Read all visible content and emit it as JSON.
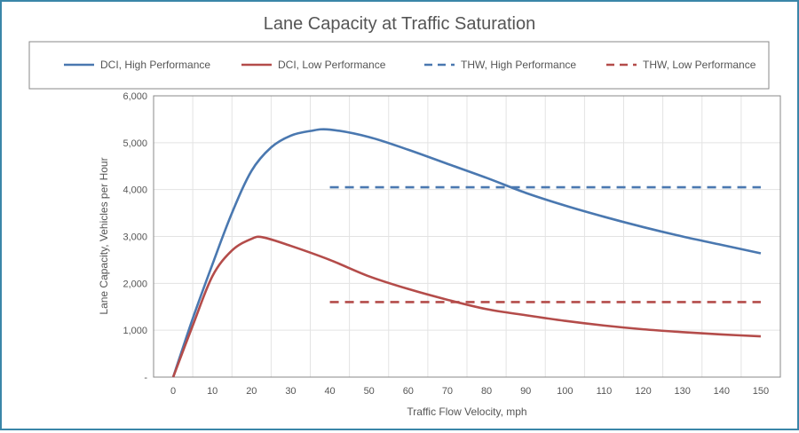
{
  "chart_data": {
    "type": "line",
    "title": "Lane Capacity at Traffic Saturation",
    "xlabel": "Traffic Flow Velocity, mph",
    "ylabel": "Lane Capacity, Vehicles per Hour",
    "xlim": [
      -5,
      155
    ],
    "ylim": [
      0,
      6000
    ],
    "x_ticks": [
      0,
      10,
      20,
      30,
      40,
      50,
      60,
      70,
      80,
      90,
      100,
      110,
      120,
      130,
      140,
      150
    ],
    "x_tick_labels": [
      "0",
      "10",
      "20",
      "30",
      "40",
      "50",
      "60",
      "70",
      "80",
      "90",
      "100",
      "110",
      "120",
      "130",
      "140",
      "150"
    ],
    "y_ticks": [
      0,
      1000,
      2000,
      3000,
      4000,
      5000,
      6000
    ],
    "y_tick_labels": [
      "-",
      "1,000",
      "2,000",
      "3,000",
      "4,000",
      "5,000",
      "6,000"
    ],
    "grid": true,
    "legend_placement": "top",
    "series": [
      {
        "name": "DCI, High Performance",
        "color": "#4a78b0",
        "dash": false,
        "x": [
          0,
          5,
          10,
          15,
          20,
          25,
          30,
          35,
          40,
          50,
          60,
          70,
          80,
          90,
          100,
          110,
          120,
          130,
          140,
          150
        ],
        "y": [
          0,
          1250,
          2400,
          3500,
          4400,
          4900,
          5150,
          5250,
          5280,
          5120,
          4850,
          4550,
          4250,
          3930,
          3660,
          3420,
          3200,
          3000,
          2820,
          2640
        ]
      },
      {
        "name": "DCI, Low Performance",
        "color": "#b44c4a",
        "dash": false,
        "x": [
          0,
          5,
          10,
          15,
          20,
          23,
          30,
          40,
          50,
          60,
          70,
          80,
          90,
          100,
          110,
          120,
          130,
          140,
          150
        ],
        "y": [
          0,
          1100,
          2150,
          2700,
          2950,
          2980,
          2800,
          2500,
          2150,
          1880,
          1650,
          1450,
          1320,
          1200,
          1100,
          1020,
          960,
          910,
          870
        ]
      },
      {
        "name": "THW, High Performance",
        "color": "#4a78b0",
        "dash": true,
        "x": [
          40,
          150
        ],
        "y": [
          4050,
          4050
        ]
      },
      {
        "name": "THW, Low Performance",
        "color": "#b44c4a",
        "dash": true,
        "x": [
          40,
          150
        ],
        "y": [
          1600,
          1600
        ]
      }
    ]
  }
}
